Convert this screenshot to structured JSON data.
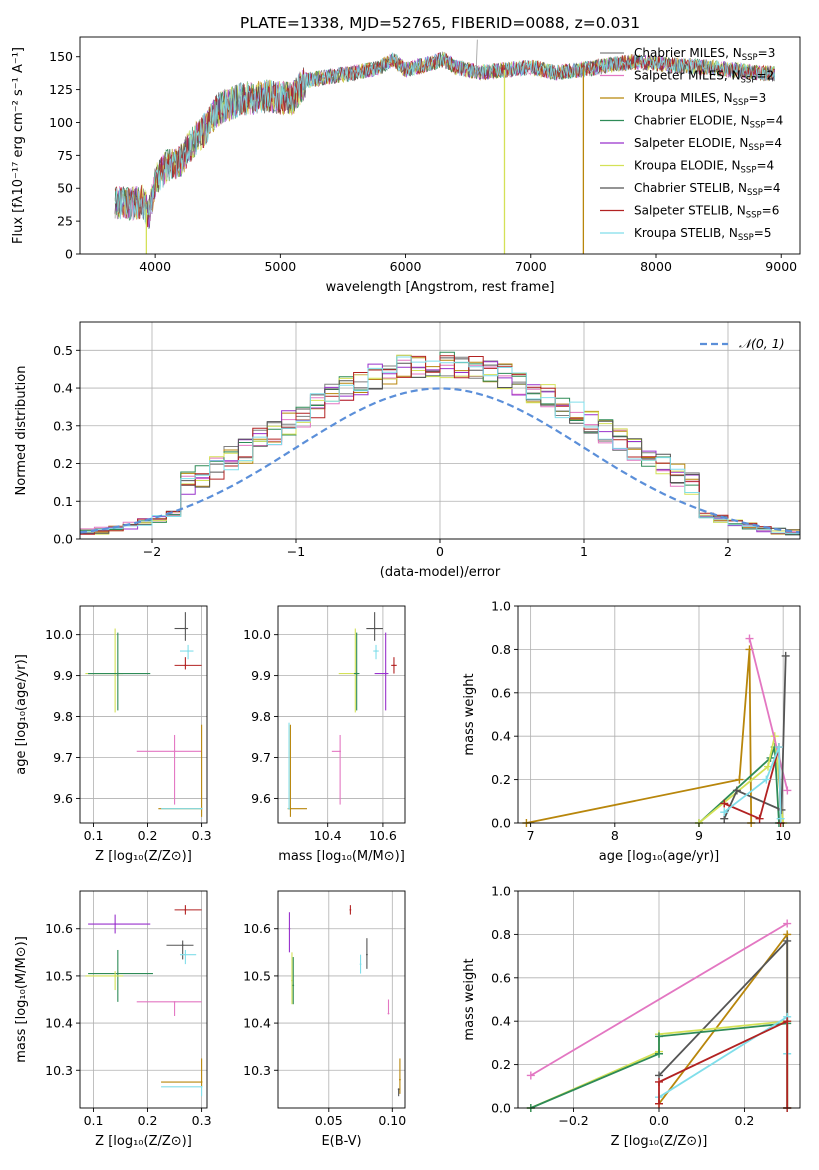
{
  "title": "PLATE=1338, MJD=52765, FIBERID=0088, z=0.031",
  "colors": {
    "Chabrier MILES": "#7f7f7f",
    "Salpeter MILES": "#e377c2",
    "Kroupa MILES": "#b8860b",
    "Chabrier ELODIE": "#2e8b57",
    "Salpeter ELODIE": "#9932cc",
    "Kroupa ELODIE": "#d4e157",
    "Chabrier STELIB": "#555555",
    "Salpeter STELIB": "#b22222",
    "Kroupa STELIB": "#80deea",
    "normal": "#5b8fd9",
    "orange_line": "#e07b39",
    "green_line": "#7cb342"
  },
  "legend": [
    {
      "name": "Chabrier MILES",
      "nssp": "3"
    },
    {
      "name": "Salpeter MILES",
      "nssp": "2"
    },
    {
      "name": "Kroupa MILES",
      "nssp": "3"
    },
    {
      "name": "Chabrier ELODIE",
      "nssp": "4"
    },
    {
      "name": "Salpeter ELODIE",
      "nssp": "4"
    },
    {
      "name": "Kroupa ELODIE",
      "nssp": "4"
    },
    {
      "name": "Chabrier STELIB",
      "nssp": "4"
    },
    {
      "name": "Salpeter STELIB",
      "nssp": "6"
    },
    {
      "name": "Kroupa STELIB",
      "nssp": "5"
    }
  ],
  "nssp_prefix": "N",
  "nssp_sub": "SSP",
  "chart_data": [
    {
      "id": "spectrum",
      "type": "line",
      "xlabel": "wavelength [Angstrom, rest frame]",
      "ylabel": "Flux [fλ10⁻¹⁷ erg cm⁻² s⁻¹ A⁻¹]",
      "xlim": [
        3400,
        9150
      ],
      "ylim": [
        0,
        165
      ],
      "xticks": [
        4000,
        5000,
        6000,
        7000,
        8000,
        9000
      ],
      "yticks": [
        0,
        25,
        50,
        75,
        100,
        125,
        150
      ],
      "envelope": [
        [
          3680,
          40
        ],
        [
          3800,
          38
        ],
        [
          3900,
          40
        ],
        [
          3950,
          30
        ],
        [
          4000,
          55
        ],
        [
          4100,
          68
        ],
        [
          4200,
          70
        ],
        [
          4300,
          85
        ],
        [
          4400,
          95
        ],
        [
          4500,
          110
        ],
        [
          4700,
          118
        ],
        [
          4900,
          120
        ],
        [
          5100,
          118
        ],
        [
          5200,
          132
        ],
        [
          5400,
          135
        ],
        [
          5600,
          138
        ],
        [
          5800,
          142
        ],
        [
          5900,
          148
        ],
        [
          6000,
          140
        ],
        [
          6200,
          145
        ],
        [
          6300,
          148
        ],
        [
          6400,
          142
        ],
        [
          6600,
          138
        ],
        [
          6800,
          140
        ],
        [
          7000,
          142
        ],
        [
          7200,
          138
        ],
        [
          7400,
          140
        ],
        [
          7600,
          143
        ],
        [
          7800,
          146
        ],
        [
          8000,
          145
        ],
        [
          8200,
          143
        ],
        [
          8400,
          142
        ],
        [
          8600,
          140
        ],
        [
          8800,
          138
        ],
        [
          8950,
          137
        ]
      ],
      "drops": [
        {
          "x": 3930,
          "color": "Kroupa ELODIE"
        },
        {
          "x": 6790,
          "color": "Kroupa ELODIE"
        },
        {
          "x": 7420,
          "color": "Kroupa MILES"
        }
      ],
      "spike": {
        "x": 6563,
        "y": 163
      }
    },
    {
      "id": "residuals",
      "type": "histogram",
      "xlabel": "(data-model)/error",
      "ylabel": "Normed distribution",
      "xlim": [
        -2.5,
        2.5
      ],
      "ylim": [
        0,
        0.575
      ],
      "xticks": [
        -2,
        -1,
        0,
        1,
        2
      ],
      "yticks": [
        0.0,
        0.1,
        0.2,
        0.3,
        0.4,
        0.5
      ],
      "bin_width": 0.1,
      "curve_label": "𝒩(0, 1)",
      "grid": true,
      "legend_placement": "top-right"
    },
    {
      "id": "age-vs-Z",
      "type": "scatter",
      "xlabel": "Z [log₁₀(Z/Z⊙)]",
      "ylabel": "age  [log₁₀(age/yr)]",
      "xlim": [
        0.075,
        0.31
      ],
      "ylim": [
        9.54,
        10.07
      ],
      "xticks": [
        0.1,
        0.2,
        0.3
      ],
      "yticks": [
        9.6,
        9.7,
        9.8,
        9.9,
        10.0
      ],
      "points": [
        {
          "s": "Kroupa ELODIE",
          "x": 0.14,
          "y": 9.905,
          "dx1": 0.055,
          "dx2": 0.015,
          "dy1": 0.095,
          "dy2": 0.11
        },
        {
          "s": "Chabrier ELODIE",
          "x": 0.145,
          "y": 9.905,
          "dx1": 0.055,
          "dx2": 0.06,
          "dy1": 0.09,
          "dy2": 0.1
        },
        {
          "s": "Chabrier STELIB",
          "x": 0.27,
          "y": 10.015,
          "dx1": 0.02,
          "dx2": 0.005,
          "dy1": 0.03,
          "dy2": 0.04
        },
        {
          "s": "Kroupa STELIB",
          "x": 0.275,
          "y": 9.96,
          "dx1": 0.015,
          "dx2": 0.01,
          "dy1": 0.02,
          "dy2": 0.015
        },
        {
          "s": "Salpeter STELIB",
          "x": 0.27,
          "y": 9.925,
          "dx1": 0.02,
          "dx2": 0.03,
          "dy1": 0.01,
          "dy2": 0.02
        },
        {
          "s": "Salpeter MILES",
          "x": 0.25,
          "y": 9.715,
          "dx1": 0.07,
          "dx2": 0.05,
          "dy1": 0.13,
          "dy2": 0.04
        },
        {
          "s": "Kroupa MILES",
          "x": 0.3,
          "y": 9.575,
          "dx1": 0.08,
          "dx2": 0.0,
          "dy1": 0.02,
          "dy2": 0.205
        },
        {
          "s": "Kroupa STELIB",
          "x": 0.3,
          "y": 9.575,
          "dx1": 0.075,
          "dx2": 0.0,
          "dy1": 0.0,
          "dy2": 0.0
        }
      ]
    },
    {
      "id": "age-vs-mass",
      "type": "scatter",
      "xlabel": "mass [log₁₀(M/M⊙)]",
      "ylabel": "",
      "xlim": [
        10.22,
        10.68
      ],
      "ylim": [
        9.54,
        10.07
      ],
      "xticks": [
        10.4,
        10.6
      ],
      "yticks": [
        9.6,
        9.7,
        9.8,
        9.9,
        10.0
      ],
      "points": [
        {
          "s": "Kroupa ELODIE",
          "x": 10.5,
          "y": 9.905,
          "dx1": 0.06,
          "dx2": 0.01,
          "dy1": 0.095,
          "dy2": 0.11
        },
        {
          "s": "Chabrier ELODIE",
          "x": 10.505,
          "y": 9.905,
          "dx1": 0.01,
          "dx2": 0.01,
          "dy1": 0.09,
          "dy2": 0.1
        },
        {
          "s": "Chabrier STELIB",
          "x": 10.57,
          "y": 10.015,
          "dx1": 0.03,
          "dx2": 0.03,
          "dy1": 0.03,
          "dy2": 0.04
        },
        {
          "s": "Kroupa STELIB",
          "x": 10.575,
          "y": 9.96,
          "dx1": 0.01,
          "dx2": 0.01,
          "dy1": 0.02,
          "dy2": 0.015
        },
        {
          "s": "Salpeter ELODIE",
          "x": 10.61,
          "y": 9.905,
          "dx1": 0.04,
          "dx2": 0.01,
          "dy1": 0.09,
          "dy2": 0.1
        },
        {
          "s": "Salpeter STELIB",
          "x": 10.64,
          "y": 9.925,
          "dx1": 0.01,
          "dx2": 0.01,
          "dy1": 0.02,
          "dy2": 0.02
        },
        {
          "s": "Salpeter MILES",
          "x": 10.445,
          "y": 9.715,
          "dx1": 0.03,
          "dx2": 0.0,
          "dy1": 0.13,
          "dy2": 0.04
        },
        {
          "s": "Kroupa MILES",
          "x": 10.265,
          "y": 9.575,
          "dx1": 0.01,
          "dx2": 0.06,
          "dy1": 0.02,
          "dy2": 0.205
        },
        {
          "s": "Kroupa STELIB",
          "x": 10.26,
          "y": 9.575,
          "dx1": 0.0,
          "dx2": 0.0,
          "dy1": 0.0,
          "dy2": 0.21
        }
      ]
    },
    {
      "id": "weight-vs-age",
      "type": "line",
      "xlabel": "age  [log₁₀(age/yr)]",
      "ylabel": "mass weight",
      "xlim": [
        6.85,
        10.2
      ],
      "ylim": [
        0,
        1
      ],
      "xticks": [
        7,
        8,
        9,
        10
      ],
      "yticks": [
        0.0,
        0.2,
        0.4,
        0.6,
        0.8,
        1.0
      ],
      "series": [
        {
          "s": "Kroupa MILES",
          "points": [
            [
              6.95,
              0.0
            ],
            [
              9.48,
              0.2
            ],
            [
              9.6,
              0.8
            ],
            [
              9.62,
              0.0
            ]
          ]
        },
        {
          "s": "Chabrier ELODIE",
          "points": [
            [
              9.0,
              0.0
            ],
            [
              9.85,
              0.3
            ],
            [
              9.9,
              0.35
            ],
            [
              9.95,
              0.0
            ]
          ]
        },
        {
          "s": "Kroupa ELODIE",
          "points": [
            [
              9.0,
              0.0
            ],
            [
              9.82,
              0.26
            ],
            [
              9.9,
              0.4
            ],
            [
              10.0,
              0.0
            ]
          ]
        },
        {
          "s": "Salpeter MILES",
          "points": [
            [
              9.6,
              0.85
            ],
            [
              10.05,
              0.15
            ]
          ]
        },
        {
          "s": "Chabrier STELIB",
          "points": [
            [
              9.3,
              0.02
            ],
            [
              9.45,
              0.15
            ],
            [
              9.98,
              0.06
            ],
            [
              10.03,
              0.77
            ]
          ]
        },
        {
          "s": "Salpeter STELIB",
          "points": [
            [
              9.3,
              0.09
            ],
            [
              9.72,
              0.02
            ],
            [
              9.95,
              0.35
            ],
            [
              9.97,
              0.0
            ]
          ]
        },
        {
          "s": "Kroupa STELIB",
          "points": [
            [
              9.3,
              0.05
            ],
            [
              9.8,
              0.2
            ],
            [
              9.95,
              0.35
            ],
            [
              9.97,
              0.02
            ]
          ]
        }
      ]
    },
    {
      "id": "mass-vs-Z",
      "type": "scatter",
      "xlabel": "Z [log₁₀(Z/Z⊙)]",
      "ylabel": "mass [log₁₀(M/M⊙)]",
      "xlim": [
        0.075,
        0.31
      ],
      "ylim": [
        10.22,
        10.68
      ],
      "xticks": [
        0.1,
        0.2,
        0.3
      ],
      "yticks": [
        10.3,
        10.4,
        10.5,
        10.6
      ],
      "points": [
        {
          "s": "Salpeter STELIB",
          "x": 0.27,
          "y": 10.64,
          "dx1": 0.02,
          "dx2": 0.03,
          "dy1": 0.01,
          "dy2": 0.01
        },
        {
          "s": "Salpeter ELODIE",
          "x": 0.14,
          "y": 10.61,
          "dx1": 0.05,
          "dx2": 0.065,
          "dy1": 0.02,
          "dy2": 0.02
        },
        {
          "s": "Chabrier STELIB",
          "x": 0.265,
          "y": 10.565,
          "dx1": 0.03,
          "dx2": 0.02,
          "dy1": 0.03,
          "dy2": 0.01
        },
        {
          "s": "Kroupa STELIB",
          "x": 0.27,
          "y": 10.545,
          "dx1": 0.01,
          "dx2": 0.02,
          "dy1": 0.02,
          "dy2": 0.01
        },
        {
          "s": "Chabrier ELODIE",
          "x": 0.145,
          "y": 10.505,
          "dx1": 0.055,
          "dx2": 0.065,
          "dy1": 0.06,
          "dy2": 0.05
        },
        {
          "s": "Kroupa ELODIE",
          "x": 0.14,
          "y": 10.5,
          "dx1": 0.055,
          "dx2": 0.015,
          "dy1": 0.03,
          "dy2": 0.01
        },
        {
          "s": "Salpeter MILES",
          "x": 0.25,
          "y": 10.445,
          "dx1": 0.07,
          "dx2": 0.05,
          "dy1": 0.03,
          "dy2": 0.0
        },
        {
          "s": "Kroupa MILES",
          "x": 0.3,
          "y": 10.275,
          "dx1": 0.075,
          "dx2": 0.0,
          "dy1": 0.01,
          "dy2": 0.05
        },
        {
          "s": "Kroupa STELIB",
          "x": 0.3,
          "y": 10.265,
          "dx1": 0.075,
          "dx2": 0.0,
          "dy1": 0.02,
          "dy2": 0.0
        }
      ]
    },
    {
      "id": "mass-vs-ebv",
      "type": "scatter",
      "xlabel": "E(B-V)",
      "ylabel": "",
      "xlim": [
        0.01,
        0.11
      ],
      "ylim": [
        10.22,
        10.68
      ],
      "xticks": [
        0.05,
        0.1
      ],
      "yticks": [
        10.3,
        10.4,
        10.5,
        10.6
      ],
      "points": [
        {
          "s": "Salpeter STELIB",
          "x": 0.067,
          "y": 10.64,
          "dx1": 0.0,
          "dx2": 0.0,
          "dy1": 0.01,
          "dy2": 0.01
        },
        {
          "s": "Salpeter ELODIE",
          "x": 0.019,
          "y": 10.6,
          "dx1": 0.0,
          "dx2": 0.0,
          "dy1": 0.05,
          "dy2": 0.035
        },
        {
          "s": "Chabrier STELIB",
          "x": 0.08,
          "y": 10.545,
          "dx1": 0.0,
          "dx2": 0.0,
          "dy1": 0.03,
          "dy2": 0.035
        },
        {
          "s": "Kroupa STELIB",
          "x": 0.075,
          "y": 10.525,
          "dx1": 0.0,
          "dx2": 0.0,
          "dy1": 0.02,
          "dy2": 0.02
        },
        {
          "s": "Kroupa ELODIE",
          "x": 0.021,
          "y": 10.49,
          "dx1": 0.0,
          "dx2": 0.0,
          "dy1": 0.05,
          "dy2": 0.06
        },
        {
          "s": "Chabrier ELODIE",
          "x": 0.022,
          "y": 10.48,
          "dx1": 0.0,
          "dx2": 0.0,
          "dy1": 0.04,
          "dy2": 0.06
        },
        {
          "s": "Salpeter MILES",
          "x": 0.097,
          "y": 10.42,
          "dx1": 0.0,
          "dx2": 0.0,
          "dy1": 0.0,
          "dy2": 0.03
        },
        {
          "s": "Kroupa MILES",
          "x": 0.106,
          "y": 10.28,
          "dx1": 0.0,
          "dx2": 0.0,
          "dy1": 0.03,
          "dy2": 0.045
        },
        {
          "s": "Chabrier STELIB",
          "x": 0.105,
          "y": 10.26,
          "dx1": 0.0,
          "dx2": 0.0,
          "dy1": 0.015,
          "dy2": 0.0
        }
      ]
    },
    {
      "id": "weight-vs-Z",
      "type": "line",
      "xlabel": "Z [log₁₀(Z/Z⊙)]",
      "ylabel": "mass weight",
      "xlim": [
        -0.33,
        0.33
      ],
      "ylim": [
        0,
        1
      ],
      "xticks": [
        -0.2,
        0.0,
        0.2
      ],
      "yticks": [
        0.0,
        0.2,
        0.4,
        0.6,
        0.8,
        1.0
      ],
      "series": [
        {
          "s": "Salpeter MILES",
          "points": [
            [
              -0.3,
              0.15
            ],
            [
              0.3,
              0.85
            ]
          ]
        },
        {
          "s": "Kroupa MILES",
          "points": [
            [
              0.0,
              0.02
            ],
            [
              0.3,
              0.8
            ],
            [
              0.3,
              0.0
            ]
          ]
        },
        {
          "s": "Chabrier STELIB",
          "points": [
            [
              0.0,
              0.15
            ],
            [
              0.3,
              0.77
            ],
            [
              0.3,
              0.0
            ]
          ]
        },
        {
          "s": "Kroupa ELODIE",
          "points": [
            [
              -0.3,
              0.0
            ],
            [
              0.0,
              0.26
            ],
            [
              0.0,
              0.34
            ],
            [
              0.3,
              0.4
            ],
            [
              0.3,
              0.0
            ]
          ]
        },
        {
          "s": "Chabrier ELODIE",
          "points": [
            [
              -0.3,
              0.0
            ],
            [
              0.0,
              0.25
            ],
            [
              0.0,
              0.33
            ],
            [
              0.3,
              0.39
            ]
          ]
        },
        {
          "s": "Kroupa STELIB",
          "points": [
            [
              0.0,
              0.05
            ],
            [
              0.3,
              0.42
            ],
            [
              0.3,
              0.25
            ],
            [
              0.3,
              0.0
            ]
          ]
        },
        {
          "s": "Salpeter STELIB",
          "points": [
            [
              0.0,
              0.02
            ],
            [
              0.0,
              0.12
            ],
            [
              0.3,
              0.4
            ],
            [
              0.3,
              0.0
            ]
          ]
        }
      ]
    }
  ]
}
